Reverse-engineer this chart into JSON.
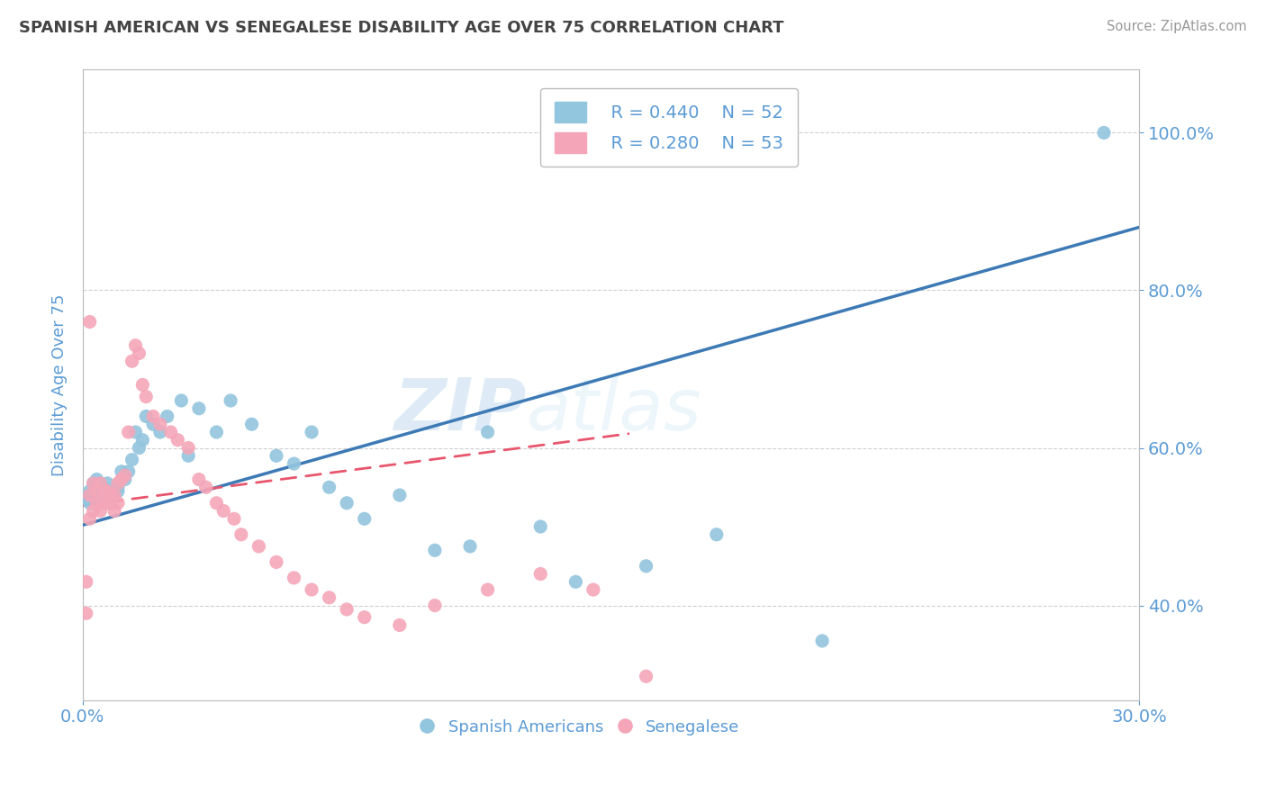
{
  "title": "SPANISH AMERICAN VS SENEGALESE DISABILITY AGE OVER 75 CORRELATION CHART",
  "source": "Source: ZipAtlas.com",
  "ylabel": "Disability Age Over 75",
  "legend_blue_r": "R = 0.440",
  "legend_blue_n": "N = 52",
  "legend_pink_r": "R = 0.280",
  "legend_pink_n": "N = 53",
  "legend_label_blue": "Spanish Americans",
  "legend_label_pink": "Senegalese",
  "watermark_zip": "ZIP",
  "watermark_atlas": "atlas",
  "blue_color": "#92c5de",
  "pink_color": "#f4a6b8",
  "blue_line_color": "#3d7ab5",
  "pink_line_color": "#e8566e",
  "grid_color": "#d0d0d0",
  "title_color": "#444444",
  "axis_label_color": "#5b9bd5",
  "tick_label_color": "#5b9bd5",
  "xmin": 0.0,
  "xmax": 0.3,
  "ymin": 0.28,
  "ymax": 1.08,
  "blue_scatter_x": [
    0.001,
    0.002,
    0.002,
    0.003,
    0.003,
    0.004,
    0.004,
    0.005,
    0.005,
    0.006,
    0.006,
    0.007,
    0.007,
    0.008,
    0.008,
    0.009,
    0.01,
    0.01,
    0.011,
    0.012,
    0.012,
    0.013,
    0.014,
    0.015,
    0.016,
    0.017,
    0.018,
    0.02,
    0.022,
    0.024,
    0.028,
    0.03,
    0.033,
    0.038,
    0.042,
    0.048,
    0.055,
    0.06,
    0.065,
    0.07,
    0.075,
    0.08,
    0.09,
    0.1,
    0.11,
    0.115,
    0.13,
    0.14,
    0.16,
    0.18,
    0.21,
    0.29
  ],
  "blue_scatter_y": [
    0.535,
    0.53,
    0.545,
    0.54,
    0.555,
    0.55,
    0.56,
    0.545,
    0.555,
    0.54,
    0.55,
    0.545,
    0.555,
    0.535,
    0.545,
    0.54,
    0.55,
    0.545,
    0.57,
    0.56,
    0.565,
    0.57,
    0.585,
    0.62,
    0.6,
    0.61,
    0.64,
    0.63,
    0.62,
    0.64,
    0.66,
    0.59,
    0.65,
    0.62,
    0.66,
    0.63,
    0.59,
    0.58,
    0.62,
    0.55,
    0.53,
    0.51,
    0.54,
    0.47,
    0.475,
    0.62,
    0.5,
    0.43,
    0.45,
    0.49,
    0.355,
    1.0
  ],
  "pink_scatter_x": [
    0.001,
    0.001,
    0.002,
    0.002,
    0.003,
    0.003,
    0.004,
    0.004,
    0.005,
    0.005,
    0.006,
    0.006,
    0.007,
    0.007,
    0.008,
    0.008,
    0.009,
    0.009,
    0.01,
    0.01,
    0.011,
    0.012,
    0.013,
    0.014,
    0.015,
    0.016,
    0.017,
    0.018,
    0.02,
    0.022,
    0.025,
    0.027,
    0.03,
    0.033,
    0.035,
    0.038,
    0.04,
    0.043,
    0.045,
    0.05,
    0.055,
    0.06,
    0.065,
    0.07,
    0.075,
    0.08,
    0.09,
    0.1,
    0.115,
    0.13,
    0.145,
    0.16,
    0.002
  ],
  "pink_scatter_y": [
    0.39,
    0.43,
    0.51,
    0.54,
    0.52,
    0.555,
    0.53,
    0.545,
    0.52,
    0.555,
    0.53,
    0.545,
    0.53,
    0.545,
    0.53,
    0.54,
    0.52,
    0.54,
    0.53,
    0.555,
    0.56,
    0.565,
    0.62,
    0.71,
    0.73,
    0.72,
    0.68,
    0.665,
    0.64,
    0.63,
    0.62,
    0.61,
    0.6,
    0.56,
    0.55,
    0.53,
    0.52,
    0.51,
    0.49,
    0.475,
    0.455,
    0.435,
    0.42,
    0.41,
    0.395,
    0.385,
    0.375,
    0.4,
    0.42,
    0.44,
    0.42,
    0.31,
    0.76
  ],
  "blue_trendline_x": [
    0.0,
    0.3
  ],
  "blue_trendline_y": [
    0.502,
    0.88
  ],
  "pink_trendline_x": [
    0.0,
    0.155
  ],
  "pink_trendline_y": [
    0.527,
    0.618
  ]
}
